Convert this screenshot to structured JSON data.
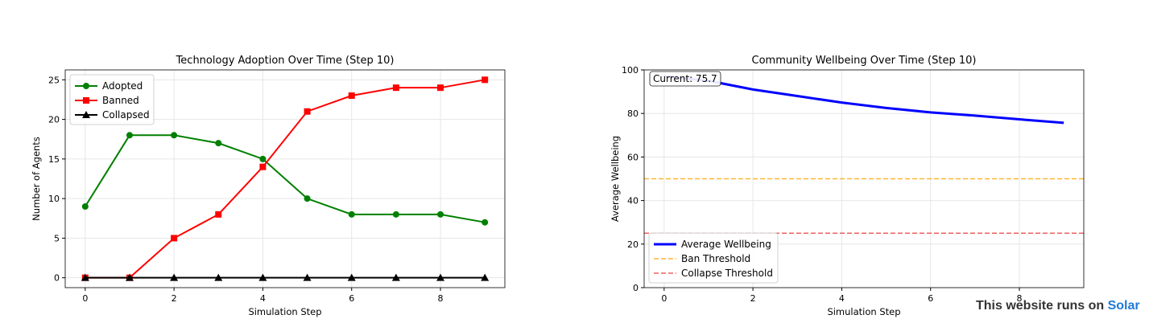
{
  "chart_data": [
    {
      "type": "line",
      "title": "Technology Adoption Over Time (Step 10)",
      "xlabel": "Simulation Step",
      "ylabel": "Number of Agents",
      "xlim": [
        -0.45,
        9.45
      ],
      "ylim": [
        -1.25,
        26.25
      ],
      "xticks": [
        0,
        2,
        4,
        6,
        8
      ],
      "yticks": [
        0,
        5,
        10,
        15,
        20,
        25
      ],
      "grid": true,
      "legend": "top-left",
      "x": [
        0,
        1,
        2,
        3,
        4,
        5,
        6,
        7,
        8,
        9
      ],
      "series": [
        {
          "name": "Adopted",
          "color": "#008000",
          "marker": "circle",
          "values": [
            9,
            18,
            18,
            17,
            15,
            10,
            8,
            8,
            8,
            7
          ]
        },
        {
          "name": "Banned",
          "color": "#ff0000",
          "marker": "square",
          "values": [
            0,
            0,
            5,
            8,
            14,
            21,
            23,
            24,
            24,
            25
          ]
        },
        {
          "name": "Collapsed",
          "color": "#000000",
          "marker": "triangle",
          "values": [
            0,
            0,
            0,
            0,
            0,
            0,
            0,
            0,
            0,
            0
          ]
        }
      ]
    },
    {
      "type": "line",
      "title": "Community Wellbeing Over Time (Step 10)",
      "xlabel": "Simulation Step",
      "ylabel": "Average Wellbeing",
      "xlim": [
        -0.45,
        9.45
      ],
      "ylim": [
        0,
        100
      ],
      "xticks": [
        0,
        2,
        4,
        6,
        8
      ],
      "yticks": [
        0,
        20,
        40,
        60,
        80,
        100
      ],
      "grid": true,
      "legend": "bottom-left",
      "annotation": "Current: 75.7",
      "x": [
        0,
        1,
        2,
        3,
        4,
        5,
        6,
        7,
        8,
        9
      ],
      "series": [
        {
          "name": "Average Wellbeing",
          "color": "#0000ff",
          "values": [
            97,
            95,
            91,
            88,
            85,
            82.5,
            80.5,
            79,
            77.3,
            75.7
          ]
        }
      ],
      "hlines": [
        {
          "name": "Ban Threshold",
          "value": 50,
          "color": "#ffa500"
        },
        {
          "name": "Collapse Threshold",
          "value": 25,
          "color": "#e83a3a"
        }
      ]
    }
  ],
  "footer": {
    "text": "This website runs on ",
    "brand": "Solar"
  }
}
